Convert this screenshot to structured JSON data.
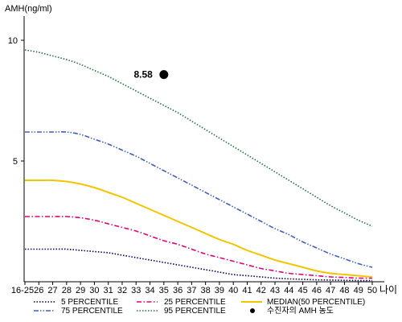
{
  "chart_data": {
    "type": "line",
    "title": "",
    "ylabel": "AMH(ng/ml)",
    "xlabel": "나이",
    "ylim": [
      0,
      11
    ],
    "yticks": [
      5,
      10
    ],
    "x": [
      "16-25",
      "26",
      "27",
      "28",
      "29",
      "30",
      "31",
      "32",
      "33",
      "34",
      "35",
      "36",
      "37",
      "38",
      "39",
      "40",
      "41",
      "42",
      "43",
      "44",
      "45",
      "46",
      "47",
      "48",
      "49",
      "50"
    ],
    "series": [
      {
        "name": "5 PERCENTILE",
        "color": "#000066",
        "dash": "dotted",
        "values": [
          1.35,
          1.35,
          1.35,
          1.35,
          1.3,
          1.25,
          1.2,
          1.1,
          1.0,
          0.9,
          0.8,
          0.7,
          0.6,
          0.5,
          0.4,
          0.3,
          0.25,
          0.2,
          0.15,
          0.12,
          0.1,
          0.08,
          0.07,
          0.06,
          0.05,
          0.05
        ]
      },
      {
        "name": "25 PERCENTILE",
        "color": "#e0007a",
        "dash": "dashdot",
        "values": [
          2.7,
          2.7,
          2.7,
          2.7,
          2.65,
          2.55,
          2.4,
          2.25,
          2.1,
          1.9,
          1.7,
          1.55,
          1.35,
          1.15,
          1.0,
          0.85,
          0.7,
          0.55,
          0.45,
          0.35,
          0.3,
          0.25,
          0.2,
          0.18,
          0.15,
          0.15
        ]
      },
      {
        "name": "MEDIAN(50 PERCENTILE)",
        "color": "#f2c500",
        "dash": "solid",
        "values": [
          4.2,
          4.2,
          4.2,
          4.15,
          4.05,
          3.9,
          3.7,
          3.5,
          3.25,
          3.0,
          2.75,
          2.5,
          2.25,
          2.0,
          1.75,
          1.55,
          1.3,
          1.1,
          0.9,
          0.75,
          0.6,
          0.45,
          0.35,
          0.3,
          0.25,
          0.2
        ]
      },
      {
        "name": "75 PERCENTILE",
        "color": "#4060c0",
        "dash": "dashdotdot",
        "values": [
          6.2,
          6.2,
          6.2,
          6.2,
          6.1,
          5.9,
          5.7,
          5.45,
          5.2,
          4.9,
          4.6,
          4.3,
          4.0,
          3.7,
          3.4,
          3.1,
          2.8,
          2.5,
          2.2,
          1.95,
          1.65,
          1.4,
          1.15,
          0.95,
          0.75,
          0.6
        ]
      },
      {
        "name": "95 PERCENTILE",
        "color": "#207040",
        "dash": "dotted",
        "values": [
          9.6,
          9.5,
          9.35,
          9.2,
          9.0,
          8.75,
          8.5,
          8.2,
          7.9,
          7.6,
          7.3,
          7.0,
          6.65,
          6.3,
          5.95,
          5.6,
          5.25,
          4.9,
          4.55,
          4.2,
          3.85,
          3.5,
          3.15,
          2.85,
          2.55,
          2.3
        ]
      }
    ],
    "patient": {
      "name": "수진자의 AMH 농도",
      "x": "35",
      "y": 8.58,
      "label": "8.58"
    },
    "legend": {
      "position": "bottom",
      "columns": 3
    }
  }
}
